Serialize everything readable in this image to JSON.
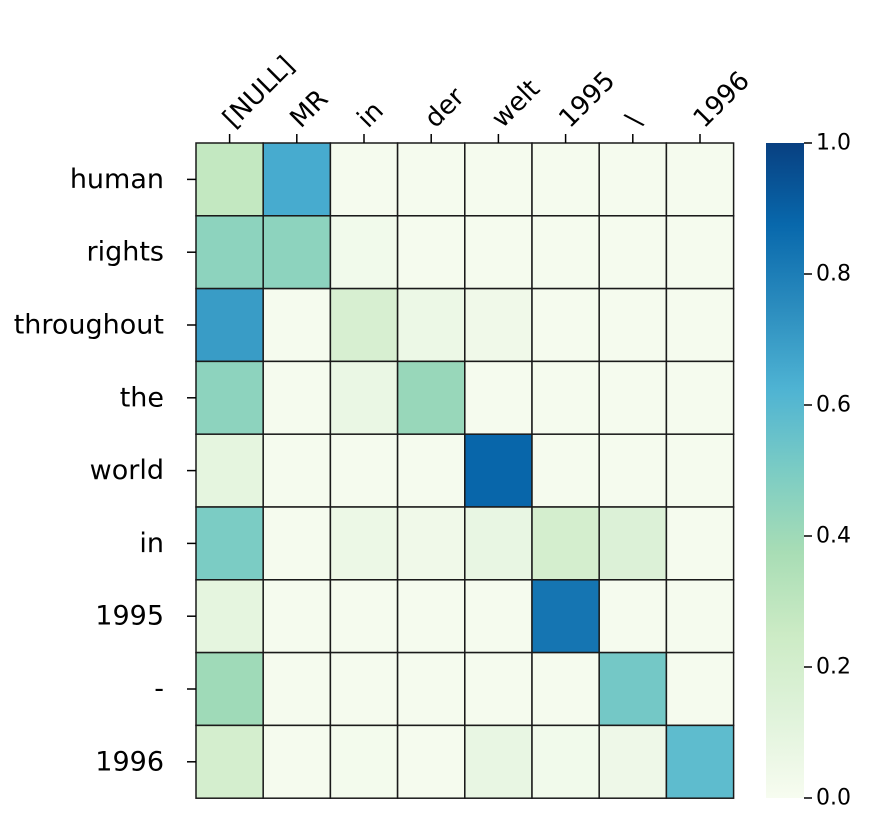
{
  "chart_data": {
    "type": "heatmap",
    "x_labels": [
      "[NULL]",
      "MR",
      "in",
      "der",
      "welt",
      "1995",
      "\\",
      "1996"
    ],
    "y_labels": [
      "human",
      "rights",
      "throughout",
      "the",
      "world",
      "in",
      "1995",
      "-",
      "1996"
    ],
    "values": [
      [
        0.28,
        0.65,
        0.01,
        0.01,
        0.01,
        0.01,
        0.01,
        0.01
      ],
      [
        0.45,
        0.45,
        0.03,
        0.01,
        0.01,
        0.01,
        0.01,
        0.01
      ],
      [
        0.7,
        0.01,
        0.18,
        0.06,
        0.04,
        0.01,
        0.01,
        0.01
      ],
      [
        0.45,
        0.01,
        0.07,
        0.42,
        0.01,
        0.01,
        0.01,
        0.01
      ],
      [
        0.1,
        0.01,
        0.01,
        0.01,
        0.88,
        0.01,
        0.01,
        0.01
      ],
      [
        0.5,
        0.01,
        0.06,
        0.04,
        0.08,
        0.2,
        0.15,
        0.01
      ],
      [
        0.1,
        0.01,
        0.01,
        0.01,
        0.01,
        0.83,
        0.01,
        0.01
      ],
      [
        0.4,
        0.01,
        0.01,
        0.01,
        0.01,
        0.01,
        0.52,
        0.01
      ],
      [
        0.2,
        0.01,
        0.02,
        0.01,
        0.08,
        0.03,
        0.05,
        0.58
      ]
    ],
    "colorbar": {
      "range": [
        0.0,
        1.0
      ],
      "ticks": [
        "0.0",
        "0.2",
        "0.4",
        "0.6",
        "0.8",
        "1.0"
      ],
      "colormap": "GnBu"
    },
    "grid": true
  }
}
